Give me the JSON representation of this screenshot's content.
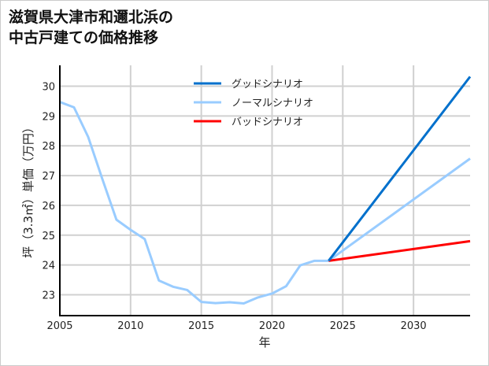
{
  "title_lines": [
    "滋賀県大津市和邇北浜の",
    "中古戸建ての価格推移"
  ],
  "chart_data": {
    "type": "line",
    "title": "滋賀県大津市和邇北浜の中古戸建ての価格推移",
    "xlabel": "年",
    "ylabel": "坪（3.3㎡）単価（万円）",
    "xlim": [
      2005,
      2034
    ],
    "ylim": [
      22.3,
      30.7
    ],
    "xticks": [
      2005,
      2010,
      2015,
      2020,
      2025,
      2030
    ],
    "yticks": [
      23,
      24,
      25,
      26,
      27,
      28,
      29,
      30
    ],
    "grid": true,
    "legend_position": "top-center",
    "history": {
      "color": "#99ccff",
      "x": [
        2005,
        2006,
        2007,
        2008,
        2009,
        2010,
        2011,
        2012,
        2013,
        2014,
        2015,
        2016,
        2017,
        2018,
        2019,
        2020,
        2021,
        2022,
        2023,
        2024
      ],
      "y": [
        29.47,
        29.29,
        28.3,
        26.89,
        25.52,
        25.18,
        24.87,
        23.48,
        23.27,
        23.16,
        22.76,
        22.72,
        22.75,
        22.71,
        22.91,
        23.04,
        23.29,
        23.99,
        24.14,
        24.14
      ]
    },
    "series": [
      {
        "name": "グッドシナリオ",
        "color": "#0070cc",
        "x": [
          2024,
          2034
        ],
        "y": [
          24.14,
          30.32
        ]
      },
      {
        "name": "ノーマルシナリオ",
        "color": "#99ccff",
        "x": [
          2024,
          2034
        ],
        "y": [
          24.14,
          27.57
        ]
      },
      {
        "name": "バッドシナリオ",
        "color": "#ff0000",
        "x": [
          2024,
          2034
        ],
        "y": [
          24.14,
          24.8
        ]
      }
    ]
  }
}
